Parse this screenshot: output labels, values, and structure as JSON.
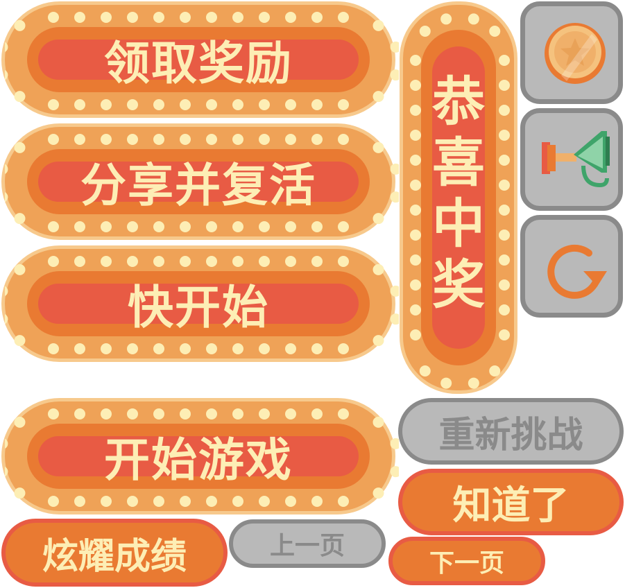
{
  "buttons": {
    "claim_reward": "领取奖励",
    "share_revive": "分享并复活",
    "quick_start": "快开始",
    "start_game": "开始游戏",
    "show_off_score": "炫耀成绩",
    "previous_page": "上一页",
    "retry": "重新挑战",
    "got_it": "知道了",
    "next_page": "下一页"
  },
  "banner": {
    "chars": [
      "恭",
      "喜",
      "中",
      "奖"
    ]
  },
  "icons": {
    "coin": "star-coin-icon",
    "speaker": "megaphone-icon",
    "restart": "restart-icon"
  },
  "colors": {
    "orange": "#e97a32",
    "red": "#e85b44",
    "light_orange": "#efa257",
    "cream": "#fdeeb5",
    "gray": "#b9b9b9",
    "dark_gray": "#8a8a8a"
  }
}
